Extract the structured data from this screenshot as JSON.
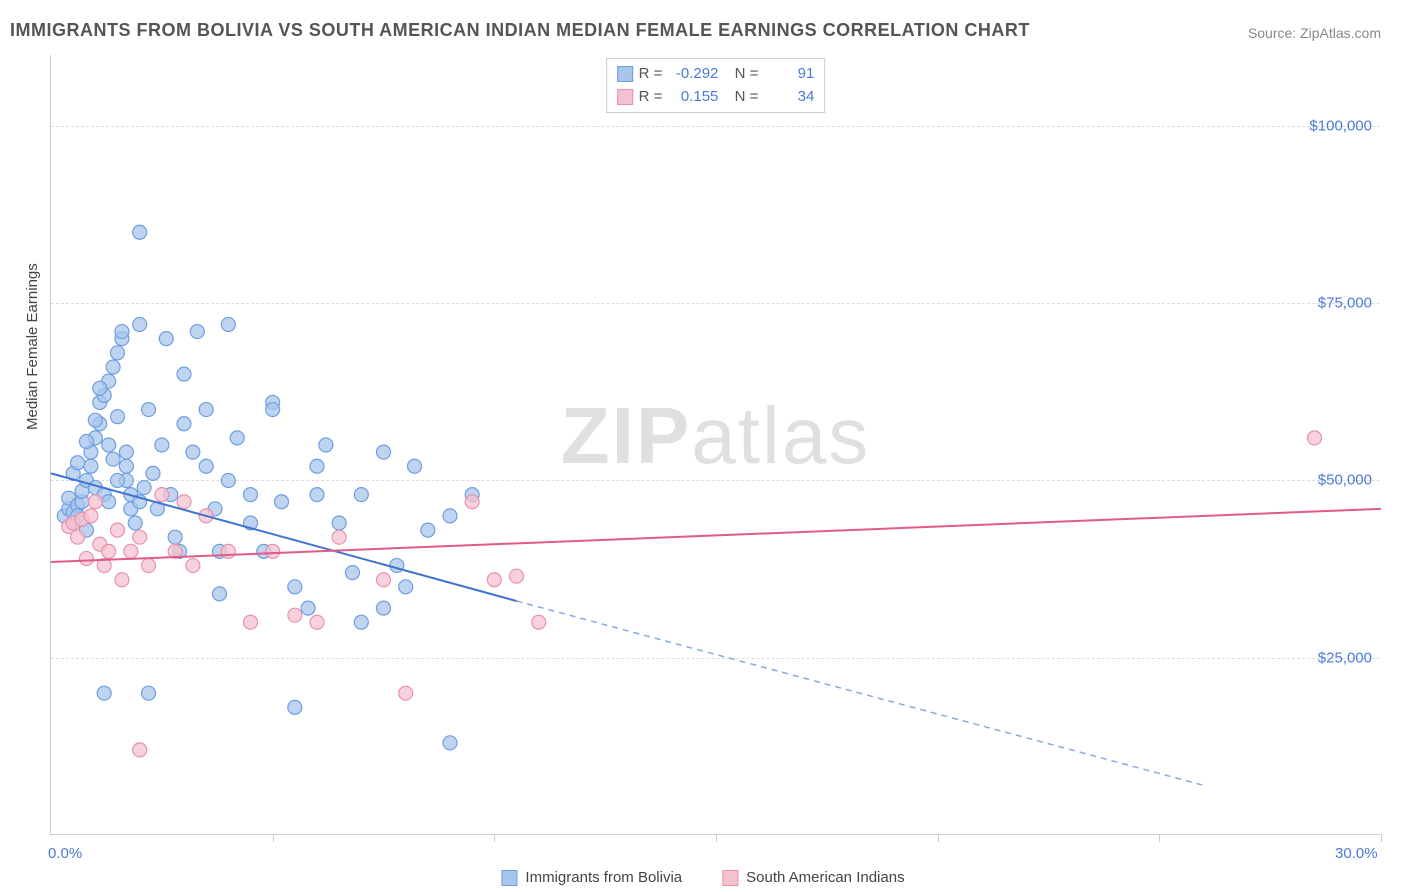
{
  "title": "IMMIGRANTS FROM BOLIVIA VS SOUTH AMERICAN INDIAN MEDIAN FEMALE EARNINGS CORRELATION CHART",
  "source_label": "Source: ",
  "source_value": "ZipAtlas.com",
  "ylabel": "Median Female Earnings",
  "watermark_bold": "ZIP",
  "watermark_light": "atlas",
  "chart": {
    "type": "scatter",
    "xlim": [
      0,
      30
    ],
    "ylim": [
      0,
      110000
    ],
    "xtick_positions": [
      0,
      5,
      10,
      15,
      20,
      25,
      30
    ],
    "ytick_positions": [
      25000,
      50000,
      75000,
      100000
    ],
    "ytick_labels": [
      "$25,000",
      "$50,000",
      "$75,000",
      "$100,000"
    ],
    "xmin_label": "0.0%",
    "xmax_label": "30.0%",
    "grid_color": "#dddddd",
    "axis_color": "#cccccc",
    "background_color": "#ffffff",
    "axis_label_color": "#4a7ad6",
    "series": [
      {
        "name": "Immigrants from Bolivia",
        "color_fill": "#a8c5ec",
        "color_stroke": "#6f9fe0",
        "marker_size": 7,
        "marker_opacity": 0.75,
        "R": "-0.292",
        "N": "91",
        "trend": {
          "x1": 0,
          "y1": 51000,
          "x2": 10.5,
          "y2": 33000,
          "solid_until_x": 10.5,
          "dash_to_x": 26,
          "dash_to_y": 7000,
          "width": 2,
          "color": "#3f74d1",
          "dash_color": "#8aa9e2"
        },
        "points": [
          [
            0.3,
            45000
          ],
          [
            0.4,
            46000
          ],
          [
            0.4,
            47500
          ],
          [
            0.5,
            44000
          ],
          [
            0.5,
            45500
          ],
          [
            0.6,
            46500
          ],
          [
            0.6,
            45000
          ],
          [
            0.7,
            47000
          ],
          [
            0.7,
            48500
          ],
          [
            0.8,
            43000
          ],
          [
            0.8,
            50000
          ],
          [
            0.9,
            52000
          ],
          [
            0.9,
            54000
          ],
          [
            1.0,
            56000
          ],
          [
            1.0,
            49000
          ],
          [
            1.1,
            58000
          ],
          [
            1.1,
            61000
          ],
          [
            1.2,
            62000
          ],
          [
            1.2,
            48000
          ],
          [
            1.3,
            64000
          ],
          [
            1.3,
            55000
          ],
          [
            1.4,
            66000
          ],
          [
            1.4,
            53000
          ],
          [
            1.5,
            68000
          ],
          [
            1.5,
            59000
          ],
          [
            1.6,
            70000
          ],
          [
            1.6,
            71000
          ],
          [
            1.7,
            50000
          ],
          [
            1.7,
            52000
          ],
          [
            1.8,
            46000
          ],
          [
            1.8,
            48000
          ],
          [
            1.9,
            44000
          ],
          [
            2.0,
            85000
          ],
          [
            2.0,
            47000
          ],
          [
            2.0,
            72000
          ],
          [
            2.1,
            49000
          ],
          [
            2.2,
            60000
          ],
          [
            2.3,
            51000
          ],
          [
            2.4,
            46000
          ],
          [
            2.5,
            55000
          ],
          [
            2.6,
            70000
          ],
          [
            2.7,
            48000
          ],
          [
            2.8,
            42000
          ],
          [
            2.9,
            40000
          ],
          [
            3.0,
            65000
          ],
          [
            3.0,
            58000
          ],
          [
            3.2,
            54000
          ],
          [
            3.3,
            71000
          ],
          [
            3.5,
            52000
          ],
          [
            3.5,
            60000
          ],
          [
            3.7,
            46000
          ],
          [
            3.8,
            34000
          ],
          [
            3.8,
            40000
          ],
          [
            4.0,
            72000
          ],
          [
            4.0,
            50000
          ],
          [
            4.2,
            56000
          ],
          [
            4.5,
            48000
          ],
          [
            4.5,
            44000
          ],
          [
            4.8,
            40000
          ],
          [
            5.0,
            61000
          ],
          [
            5.0,
            60000
          ],
          [
            5.2,
            47000
          ],
          [
            5.5,
            35000
          ],
          [
            5.5,
            18000
          ],
          [
            5.8,
            32000
          ],
          [
            6.0,
            52000
          ],
          [
            6.0,
            48000
          ],
          [
            6.2,
            55000
          ],
          [
            6.5,
            44000
          ],
          [
            6.8,
            37000
          ],
          [
            7.0,
            30000
          ],
          [
            7.0,
            48000
          ],
          [
            7.5,
            32000
          ],
          [
            7.5,
            54000
          ],
          [
            7.8,
            38000
          ],
          [
            8.0,
            35000
          ],
          [
            8.2,
            52000
          ],
          [
            8.5,
            43000
          ],
          [
            9.0,
            13000
          ],
          [
            9.0,
            45000
          ],
          [
            9.5,
            48000
          ],
          [
            1.2,
            20000
          ],
          [
            2.2,
            20000
          ],
          [
            0.5,
            51000
          ],
          [
            0.6,
            52500
          ],
          [
            0.8,
            55500
          ],
          [
            1.0,
            58500
          ],
          [
            1.1,
            63000
          ],
          [
            1.3,
            47000
          ],
          [
            1.5,
            50000
          ],
          [
            1.7,
            54000
          ]
        ]
      },
      {
        "name": "South American Indians",
        "color_fill": "#f4c1cf",
        "color_stroke": "#e893ab",
        "marker_size": 7,
        "marker_opacity": 0.75,
        "R": "0.155",
        "N": "34",
        "trend": {
          "x1": 0,
          "y1": 38500,
          "x2": 30,
          "y2": 46000,
          "solid_until_x": 30,
          "width": 2,
          "color": "#e15a8a"
        },
        "points": [
          [
            0.4,
            43500
          ],
          [
            0.5,
            44000
          ],
          [
            0.6,
            42000
          ],
          [
            0.7,
            44500
          ],
          [
            0.8,
            39000
          ],
          [
            0.9,
            45000
          ],
          [
            1.0,
            47000
          ],
          [
            1.1,
            41000
          ],
          [
            1.2,
            38000
          ],
          [
            1.3,
            40000
          ],
          [
            1.5,
            43000
          ],
          [
            1.6,
            36000
          ],
          [
            1.8,
            40000
          ],
          [
            2.0,
            42000
          ],
          [
            2.0,
            12000
          ],
          [
            2.2,
            38000
          ],
          [
            2.5,
            48000
          ],
          [
            2.8,
            40000
          ],
          [
            3.0,
            47000
          ],
          [
            3.2,
            38000
          ],
          [
            3.5,
            45000
          ],
          [
            4.0,
            40000
          ],
          [
            4.5,
            30000
          ],
          [
            5.0,
            40000
          ],
          [
            5.5,
            31000
          ],
          [
            6.0,
            30000
          ],
          [
            6.5,
            42000
          ],
          [
            7.5,
            36000
          ],
          [
            8.0,
            20000
          ],
          [
            9.5,
            47000
          ],
          [
            10.0,
            36000
          ],
          [
            10.5,
            36500
          ],
          [
            11.0,
            30000
          ],
          [
            28.5,
            56000
          ]
        ]
      }
    ]
  },
  "legend": {
    "item1": "Immigrants from Bolivia",
    "item2": "South American Indians"
  },
  "rbox": {
    "r_label": "R =",
    "n_label": "N ="
  }
}
